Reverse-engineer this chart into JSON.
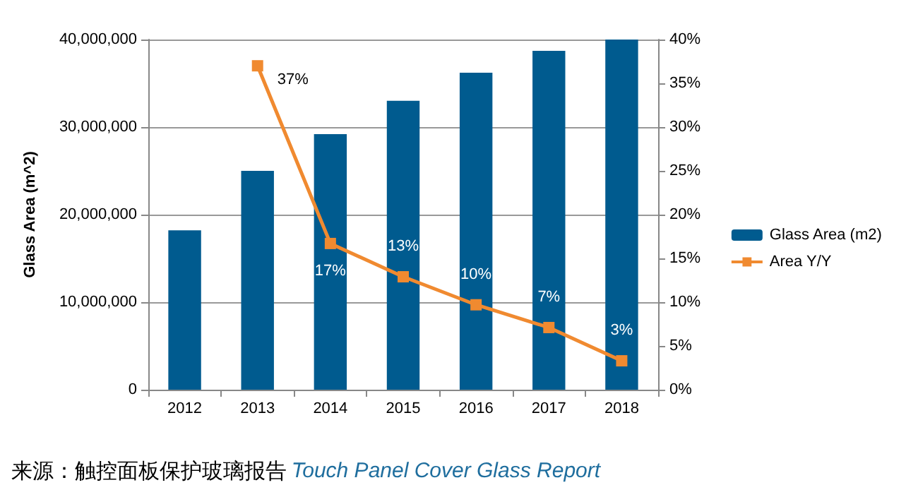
{
  "chart_data": {
    "type": "bar",
    "categories": [
      "2012",
      "2013",
      "2014",
      "2015",
      "2016",
      "2017",
      "2018"
    ],
    "ylabel": "Glass Area (m^2)",
    "series": [
      {
        "name": "Glass Area (m2)",
        "color": "#005b8f",
        "values": [
          18200000,
          25000000,
          29200000,
          33000000,
          36200000,
          38700000,
          40000000
        ]
      },
      {
        "name": "Area Y/Y",
        "type": "line",
        "axis": "y2",
        "color": "#f08a30",
        "marker": "square",
        "values": [
          null,
          37,
          16.7,
          12.9,
          9.7,
          7.1,
          3.3
        ],
        "value_labels": [
          null,
          "37%",
          "17%",
          "13%",
          "10%",
          "7%",
          "3%"
        ]
      }
    ],
    "ylim": [
      0,
      40000000
    ],
    "yticks": [
      {
        "value": 0,
        "label": "0"
      },
      {
        "value": 10000000,
        "label": "10,000,000"
      },
      {
        "value": 20000000,
        "label": "20,000,000"
      },
      {
        "value": 30000000,
        "label": "30,000,000"
      },
      {
        "value": 40000000,
        "label": "40,000,000"
      }
    ],
    "y2lim": [
      0,
      40
    ],
    "y2ticks": [
      {
        "value": 0,
        "label": "0%"
      },
      {
        "value": 5,
        "label": "5%"
      },
      {
        "value": 10,
        "label": "10%"
      },
      {
        "value": 15,
        "label": "15%"
      },
      {
        "value": 20,
        "label": "20%"
      },
      {
        "value": 25,
        "label": "25%"
      },
      {
        "value": 30,
        "label": "30%"
      },
      {
        "value": 35,
        "label": "35%"
      },
      {
        "value": 40,
        "label": "40%"
      }
    ],
    "grid": "y",
    "legend": "right",
    "annotations": [
      "来源：触控面板保护玻璃报告",
      "Touch Panel Cover Glass Report"
    ]
  }
}
